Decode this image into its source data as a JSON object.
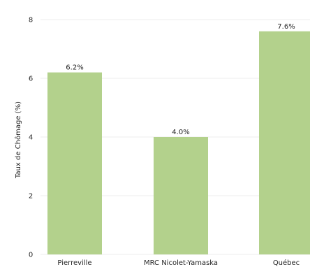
{
  "chart_data": {
    "type": "bar",
    "categories": [
      "Pierreville",
      "MRC Nicolet-Yamaska",
      "Québec"
    ],
    "values": [
      6.2,
      4.0,
      7.6
    ],
    "value_labels": [
      "6.2%",
      "4.0%",
      "7.6%"
    ],
    "ylabel": "Taux de Chômage (%)",
    "xlabel": "",
    "ylim": [
      0,
      8
    ],
    "yticks": [
      0,
      2,
      4,
      6,
      8
    ],
    "grid": "horizontal",
    "bar_color": "#b3d18c"
  }
}
